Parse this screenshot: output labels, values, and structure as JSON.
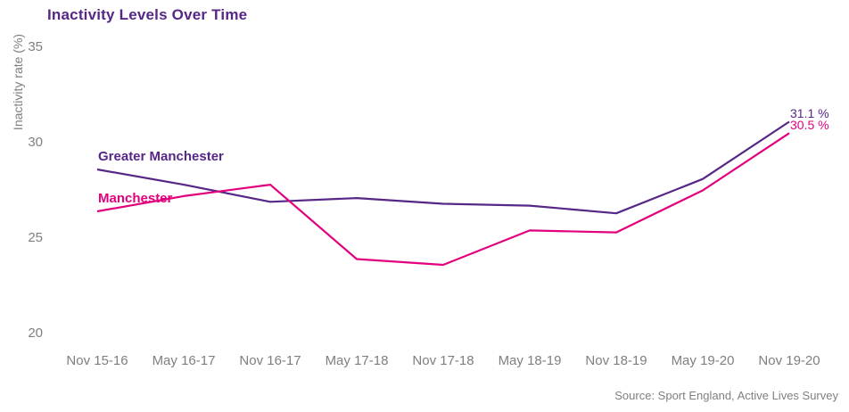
{
  "title": "Inactivity Levels Over Time",
  "source": "Source: Sport England, Active Lives Survey",
  "colors": {
    "purple": "#562787",
    "magenta": "#E2007D",
    "axis_text": "#7F7F7F",
    "background": "#FFFFFF"
  },
  "chart_data": {
    "type": "line",
    "title": "Inactivity Levels Over Time",
    "ylabel": "Inactivity rate (%)",
    "xlabel": "",
    "x": [
      "Nov 15-16",
      "May 16-17",
      "Nov 16-17",
      "May 17-18",
      "Nov 17-18",
      "May 18-19",
      "Nov 18-19",
      "May 19-20",
      "Nov 19-20"
    ],
    "yticks": [
      35,
      30,
      25,
      20
    ],
    "ylim": [
      20,
      35
    ],
    "grid": false,
    "legend_position": "inline-start-of-line",
    "series": [
      {
        "name": "Greater Manchester",
        "color_key": "purple",
        "values": [
          28.6,
          27.8,
          26.9,
          27.1,
          26.8,
          26.7,
          26.3,
          28.1,
          31.1
        ],
        "end_label": "31.1 %"
      },
      {
        "name": "Manchester",
        "color_key": "magenta",
        "values": [
          26.4,
          27.2,
          27.8,
          23.9,
          23.6,
          25.4,
          25.3,
          27.5,
          30.5
        ],
        "end_label": "30.5 %"
      }
    ]
  }
}
